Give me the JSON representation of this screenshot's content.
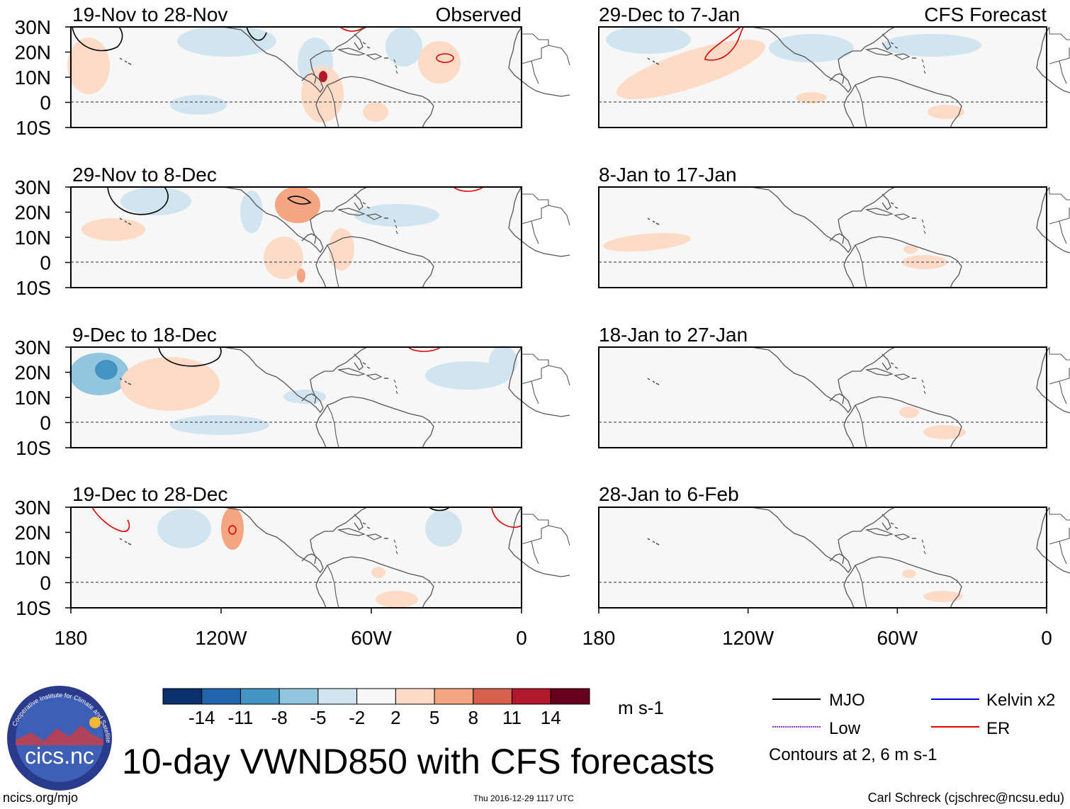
{
  "title": "10-day VWND850 with CFS forecasts",
  "observed_label": "Observed",
  "forecast_label": "CFS Forecast",
  "panels_left": [
    {
      "period": "19-Nov to 28-Nov"
    },
    {
      "period": "29-Nov to 8-Dec"
    },
    {
      "period": "9-Dec to 18-Dec"
    },
    {
      "period": "19-Dec to 28-Dec"
    }
  ],
  "panels_right": [
    {
      "period": "29-Dec to 7-Jan"
    },
    {
      "period": "8-Jan to 17-Jan"
    },
    {
      "period": "18-Jan to 27-Jan"
    },
    {
      "period": "28-Jan to 6-Feb"
    }
  ],
  "lat_ticks": [
    "30N",
    "20N",
    "10N",
    "0",
    "10S"
  ],
  "lon_ticks": [
    "180",
    "120W",
    "60W",
    "0"
  ],
  "colorbar": {
    "ticks": [
      "-14",
      "-11",
      "-8",
      "-5",
      "-2",
      "2",
      "5",
      "8",
      "11",
      "14"
    ],
    "colors": [
      "#08306b",
      "#2166ac",
      "#4393c3",
      "#92c5de",
      "#d1e5f0",
      "#f7f7f7",
      "#fddbc7",
      "#f4a582",
      "#d6604d",
      "#b2182b",
      "#67001f"
    ],
    "units": "m s-1"
  },
  "legend": {
    "items": [
      {
        "label": "MJO",
        "color": "#000000"
      },
      {
        "label": "Kelvin x2",
        "color": "#0000dd"
      },
      {
        "label": "Low",
        "color": "#9933cc"
      },
      {
        "label": "ER",
        "color": "#dd0000"
      }
    ],
    "note": "Contours at 2, 6 m s-1"
  },
  "logo_text": "cics.nc",
  "logo_ring_text": "Cooperative Institute for Climate and Satellites",
  "footer": {
    "url": "ncics.org/mjo",
    "timestamp": "Thu 2016-12-29 1117 UTC",
    "author": "Carl Schreck (cjschrec@ncsu.edu)"
  },
  "colors": {
    "neg_light": "#d1e5f0",
    "neg_mid": "#92c5de",
    "neg_dark": "#4393c3",
    "pos_light": "#fddbc7",
    "pos_mid": "#f4a582",
    "pos_dark": "#d6604d",
    "panel_bg": "#f7f7f7",
    "coast": "#555555"
  }
}
